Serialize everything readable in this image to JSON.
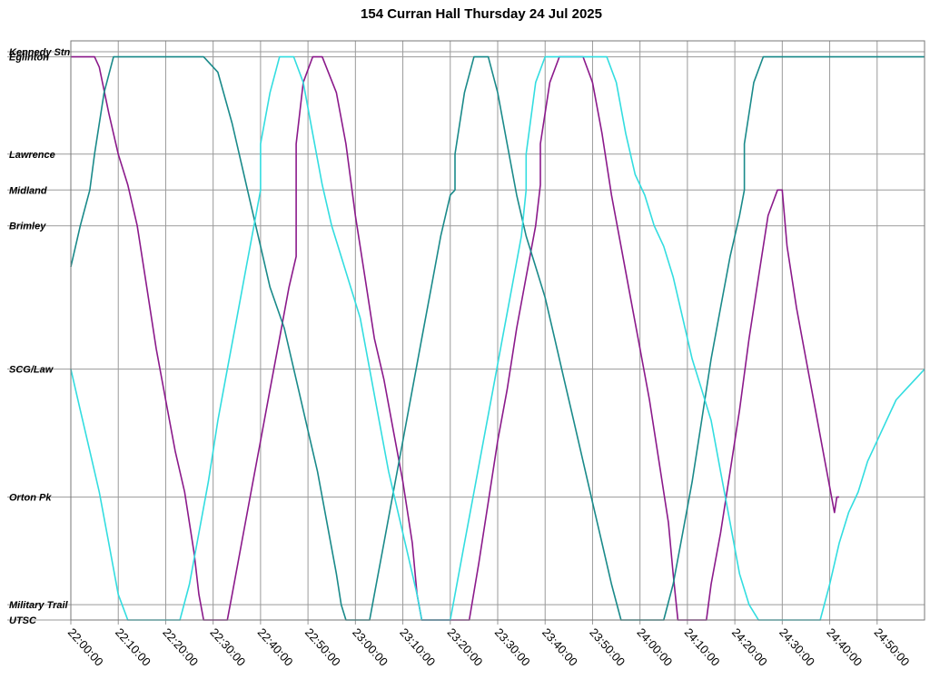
{
  "chart_data": {
    "type": "line",
    "title": "154 Curran Hall Thursday 24 Jul 2025",
    "x_labels": [
      "22:00:00",
      "22:10:00",
      "22:20:00",
      "22:30:00",
      "22:40:00",
      "22:50:00",
      "23:00:00",
      "23:10:00",
      "23:20:00",
      "23:30:00",
      "23:40:00",
      "23:50:00",
      "24:00:00",
      "24:10:00",
      "24:20:00",
      "24:30:00",
      "24:40:00",
      "24:50:00"
    ],
    "x_range_minutes": [
      0,
      180
    ],
    "stops": [
      "Kennedy Stn",
      "Eglinton",
      "Lawrence",
      "Midland",
      "Brimley",
      "SCG/Law",
      "Orton Pk",
      "Military Trail",
      "UTSC"
    ],
    "stop_positions": {
      "Kennedy Stn": 0.0,
      "Eglinton": 0.5,
      "Lawrence": 10.0,
      "Midland": 13.5,
      "Brimley": 17.0,
      "SCG/Law": 31.0,
      "Orton Pk": 43.5,
      "Military Trail": 54.0,
      "UTSC": 55.5
    },
    "grid": true,
    "series": [
      {
        "color": "#8B1A8B",
        "points": [
          [
            0,
            0.5
          ],
          [
            5,
            0.5
          ],
          [
            6,
            1.5
          ],
          [
            8,
            6
          ],
          [
            10,
            10
          ],
          [
            12,
            13
          ],
          [
            14,
            17
          ],
          [
            16,
            23
          ],
          [
            18,
            29
          ],
          [
            20,
            34
          ],
          [
            22,
            39
          ],
          [
            24,
            43
          ],
          [
            26,
            49
          ],
          [
            27,
            53
          ],
          [
            28,
            55.5
          ],
          [
            33,
            55.5
          ],
          [
            34,
            53
          ],
          [
            36,
            48
          ],
          [
            38,
            43
          ],
          [
            40,
            38
          ],
          [
            42,
            33
          ],
          [
            44,
            28
          ],
          [
            46,
            23
          ],
          [
            47.5,
            20
          ],
          [
            47.5,
            13.5
          ],
          [
            47.5,
            9
          ],
          [
            49,
            3
          ],
          [
            51,
            0.5
          ],
          [
            53,
            0.5
          ],
          [
            56,
            4
          ],
          [
            58,
            9
          ],
          [
            60,
            16
          ],
          [
            62,
            22
          ],
          [
            64,
            28
          ],
          [
            66,
            32
          ],
          [
            68,
            37
          ],
          [
            70,
            42
          ],
          [
            72,
            48
          ],
          [
            73,
            53
          ],
          [
            74,
            55.5
          ],
          [
            84,
            55.5
          ],
          [
            86,
            50
          ],
          [
            88,
            44
          ],
          [
            90,
            38
          ],
          [
            92,
            33
          ],
          [
            94,
            27
          ],
          [
            96,
            22
          ],
          [
            98,
            17
          ],
          [
            99,
            13
          ],
          [
            99,
            9
          ],
          [
            101,
            3
          ],
          [
            103,
            0.5
          ],
          [
            108,
            0.5
          ],
          [
            110,
            3
          ],
          [
            112,
            8
          ],
          [
            114,
            14
          ],
          [
            116,
            19
          ],
          [
            118,
            24
          ],
          [
            120,
            29
          ],
          [
            122,
            34
          ],
          [
            124,
            40
          ],
          [
            126,
            46
          ],
          [
            127,
            51
          ],
          [
            128,
            55.5
          ],
          [
            134,
            55.5
          ],
          [
            135,
            52
          ],
          [
            137,
            47
          ],
          [
            139,
            41
          ],
          [
            141,
            35
          ],
          [
            143,
            28
          ],
          [
            145,
            22
          ],
          [
            147,
            16
          ],
          [
            149,
            13.5
          ],
          [
            150,
            13.5
          ],
          [
            151,
            19
          ],
          [
            153,
            25
          ],
          [
            155,
            30
          ],
          [
            157,
            35
          ],
          [
            159,
            40
          ],
          [
            161,
            45
          ],
          [
            161.5,
            43.5
          ],
          [
            162,
            43.5
          ]
        ]
      },
      {
        "color": "#1A8A8A",
        "points": [
          [
            0,
            21
          ],
          [
            2,
            17
          ],
          [
            4,
            13.5
          ],
          [
            5,
            10
          ],
          [
            7,
            4
          ],
          [
            9,
            0.5
          ],
          [
            28,
            0.5
          ],
          [
            31,
            2
          ],
          [
            34,
            7
          ],
          [
            36,
            11
          ],
          [
            38,
            15
          ],
          [
            40,
            19
          ],
          [
            42,
            23
          ],
          [
            45,
            27
          ],
          [
            48,
            33
          ],
          [
            50,
            37
          ],
          [
            52,
            41
          ],
          [
            54,
            46
          ],
          [
            56,
            51
          ],
          [
            57,
            54
          ],
          [
            58,
            55.5
          ],
          [
            63,
            55.5
          ],
          [
            64,
            53
          ],
          [
            66,
            48
          ],
          [
            68,
            43
          ],
          [
            70,
            38
          ],
          [
            72,
            33
          ],
          [
            74,
            28
          ],
          [
            76,
            23
          ],
          [
            78,
            18
          ],
          [
            80,
            14
          ],
          [
            81,
            13.5
          ],
          [
            81,
            10
          ],
          [
            83,
            4
          ],
          [
            85,
            0.5
          ],
          [
            88,
            0.5
          ],
          [
            90,
            4
          ],
          [
            92,
            9
          ],
          [
            94,
            14
          ],
          [
            96,
            18
          ],
          [
            98,
            21
          ],
          [
            100,
            24
          ],
          [
            102,
            28
          ],
          [
            104,
            32
          ],
          [
            106,
            36
          ],
          [
            108,
            40
          ],
          [
            110,
            44
          ],
          [
            112,
            48
          ],
          [
            114,
            52
          ],
          [
            116,
            55.5
          ],
          [
            125,
            55.5
          ],
          [
            127,
            52
          ],
          [
            129,
            47
          ],
          [
            131,
            42
          ],
          [
            133,
            36
          ],
          [
            135,
            30
          ],
          [
            137,
            25
          ],
          [
            139,
            20
          ],
          [
            141,
            16
          ],
          [
            142,
            13.5
          ],
          [
            142,
            9
          ],
          [
            144,
            3
          ],
          [
            146,
            0.5
          ],
          [
            180,
            0.5
          ]
        ]
      },
      {
        "color": "#33DDE0",
        "points": [
          [
            0,
            31
          ],
          [
            2,
            35
          ],
          [
            4,
            39
          ],
          [
            6,
            43
          ],
          [
            8,
            48
          ],
          [
            10,
            53
          ],
          [
            12,
            55.5
          ],
          [
            23,
            55.5
          ],
          [
            25,
            52
          ],
          [
            27,
            47
          ],
          [
            29,
            42
          ],
          [
            31,
            36
          ],
          [
            33,
            31
          ],
          [
            35,
            26
          ],
          [
            37,
            21
          ],
          [
            39,
            16
          ],
          [
            40,
            13.5
          ],
          [
            40,
            9
          ],
          [
            42,
            4
          ],
          [
            44,
            0.5
          ],
          [
            47,
            0.5
          ],
          [
            49,
            3
          ],
          [
            51,
            8
          ],
          [
            53,
            13
          ],
          [
            55,
            17
          ],
          [
            57,
            20
          ],
          [
            59,
            23
          ],
          [
            61,
            26
          ],
          [
            63,
            31
          ],
          [
            65,
            36
          ],
          [
            67,
            41
          ],
          [
            69,
            45
          ],
          [
            71,
            49
          ],
          [
            73,
            53
          ],
          [
            74,
            55.5
          ],
          [
            80,
            55.5
          ],
          [
            81,
            53
          ],
          [
            83,
            48
          ],
          [
            85,
            43
          ],
          [
            87,
            38
          ],
          [
            89,
            33
          ],
          [
            91,
            28
          ],
          [
            93,
            23
          ],
          [
            95,
            18
          ],
          [
            96,
            13.5
          ],
          [
            96,
            10
          ],
          [
            98,
            3
          ],
          [
            100,
            0.5
          ],
          [
            113,
            0.5
          ],
          [
            115,
            3
          ],
          [
            117,
            8
          ],
          [
            119,
            12
          ],
          [
            121,
            14
          ],
          [
            123,
            17
          ],
          [
            125,
            19
          ],
          [
            127,
            22
          ],
          [
            129,
            26
          ],
          [
            131,
            30
          ],
          [
            133,
            33
          ],
          [
            135,
            36
          ],
          [
            137,
            41
          ],
          [
            139,
            46
          ],
          [
            141,
            51
          ],
          [
            143,
            54
          ],
          [
            145,
            55.5
          ],
          [
            158,
            55.5
          ],
          [
            160,
            52
          ],
          [
            162,
            48
          ],
          [
            164,
            45
          ],
          [
            166,
            43
          ],
          [
            168,
            40
          ],
          [
            170,
            38
          ],
          [
            172,
            36
          ],
          [
            174,
            34
          ],
          [
            176,
            33
          ],
          [
            178,
            32
          ],
          [
            180,
            31
          ]
        ]
      }
    ]
  }
}
